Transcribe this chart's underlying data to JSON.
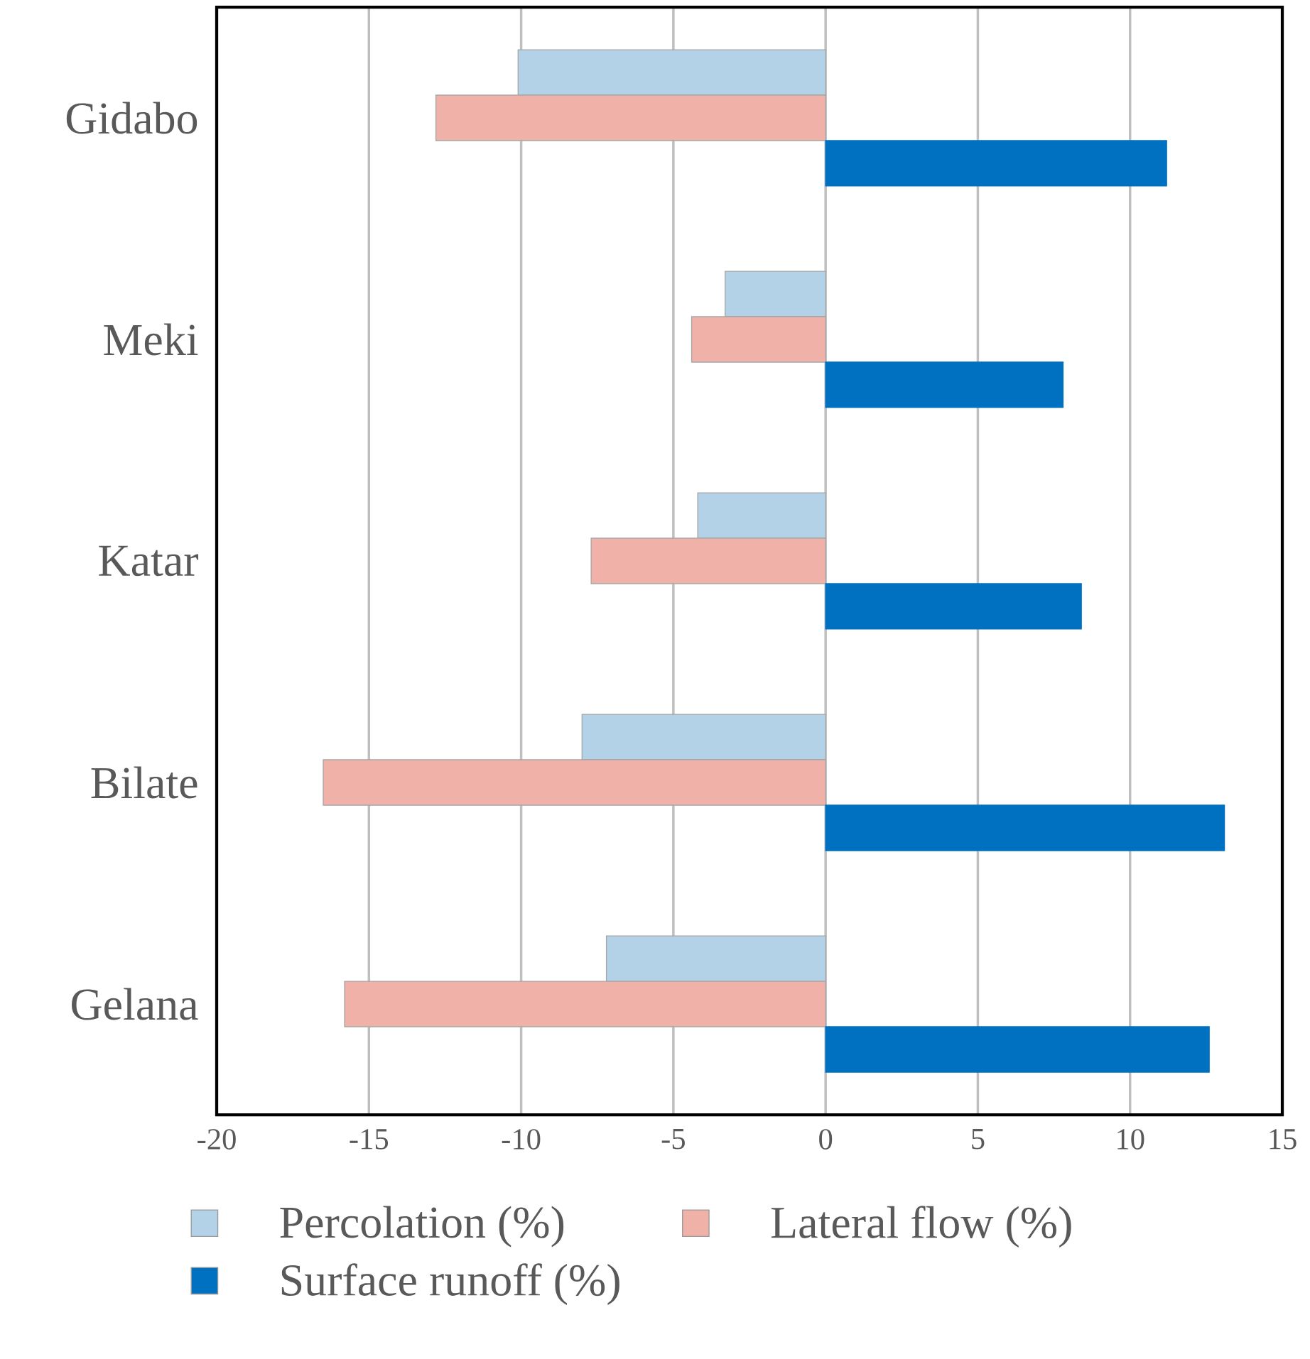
{
  "chart_data": {
    "type": "bar",
    "orientation": "horizontal",
    "categories": [
      "Gidabo",
      "Meki",
      "Katar",
      "Bilate",
      "Gelana"
    ],
    "series": [
      {
        "name": "Percolation (%)",
        "color": "#b4d2e7",
        "values": [
          -10.1,
          -3.3,
          -4.2,
          -8.0,
          -7.2
        ]
      },
      {
        "name": "Lateral flow  (%)",
        "color": "#f0b1a8",
        "values": [
          -12.8,
          -4.4,
          -7.7,
          -16.5,
          -15.8
        ]
      },
      {
        "name": "Surface runoff  (%)",
        "color": "#0070c0",
        "values": [
          11.2,
          7.8,
          8.4,
          13.1,
          12.6
        ]
      }
    ],
    "xlim": [
      -20,
      15
    ],
    "xticks": [
      -20,
      -15,
      -10,
      -5,
      0,
      5,
      10,
      15
    ],
    "grid": "x",
    "legend": "bottom"
  }
}
